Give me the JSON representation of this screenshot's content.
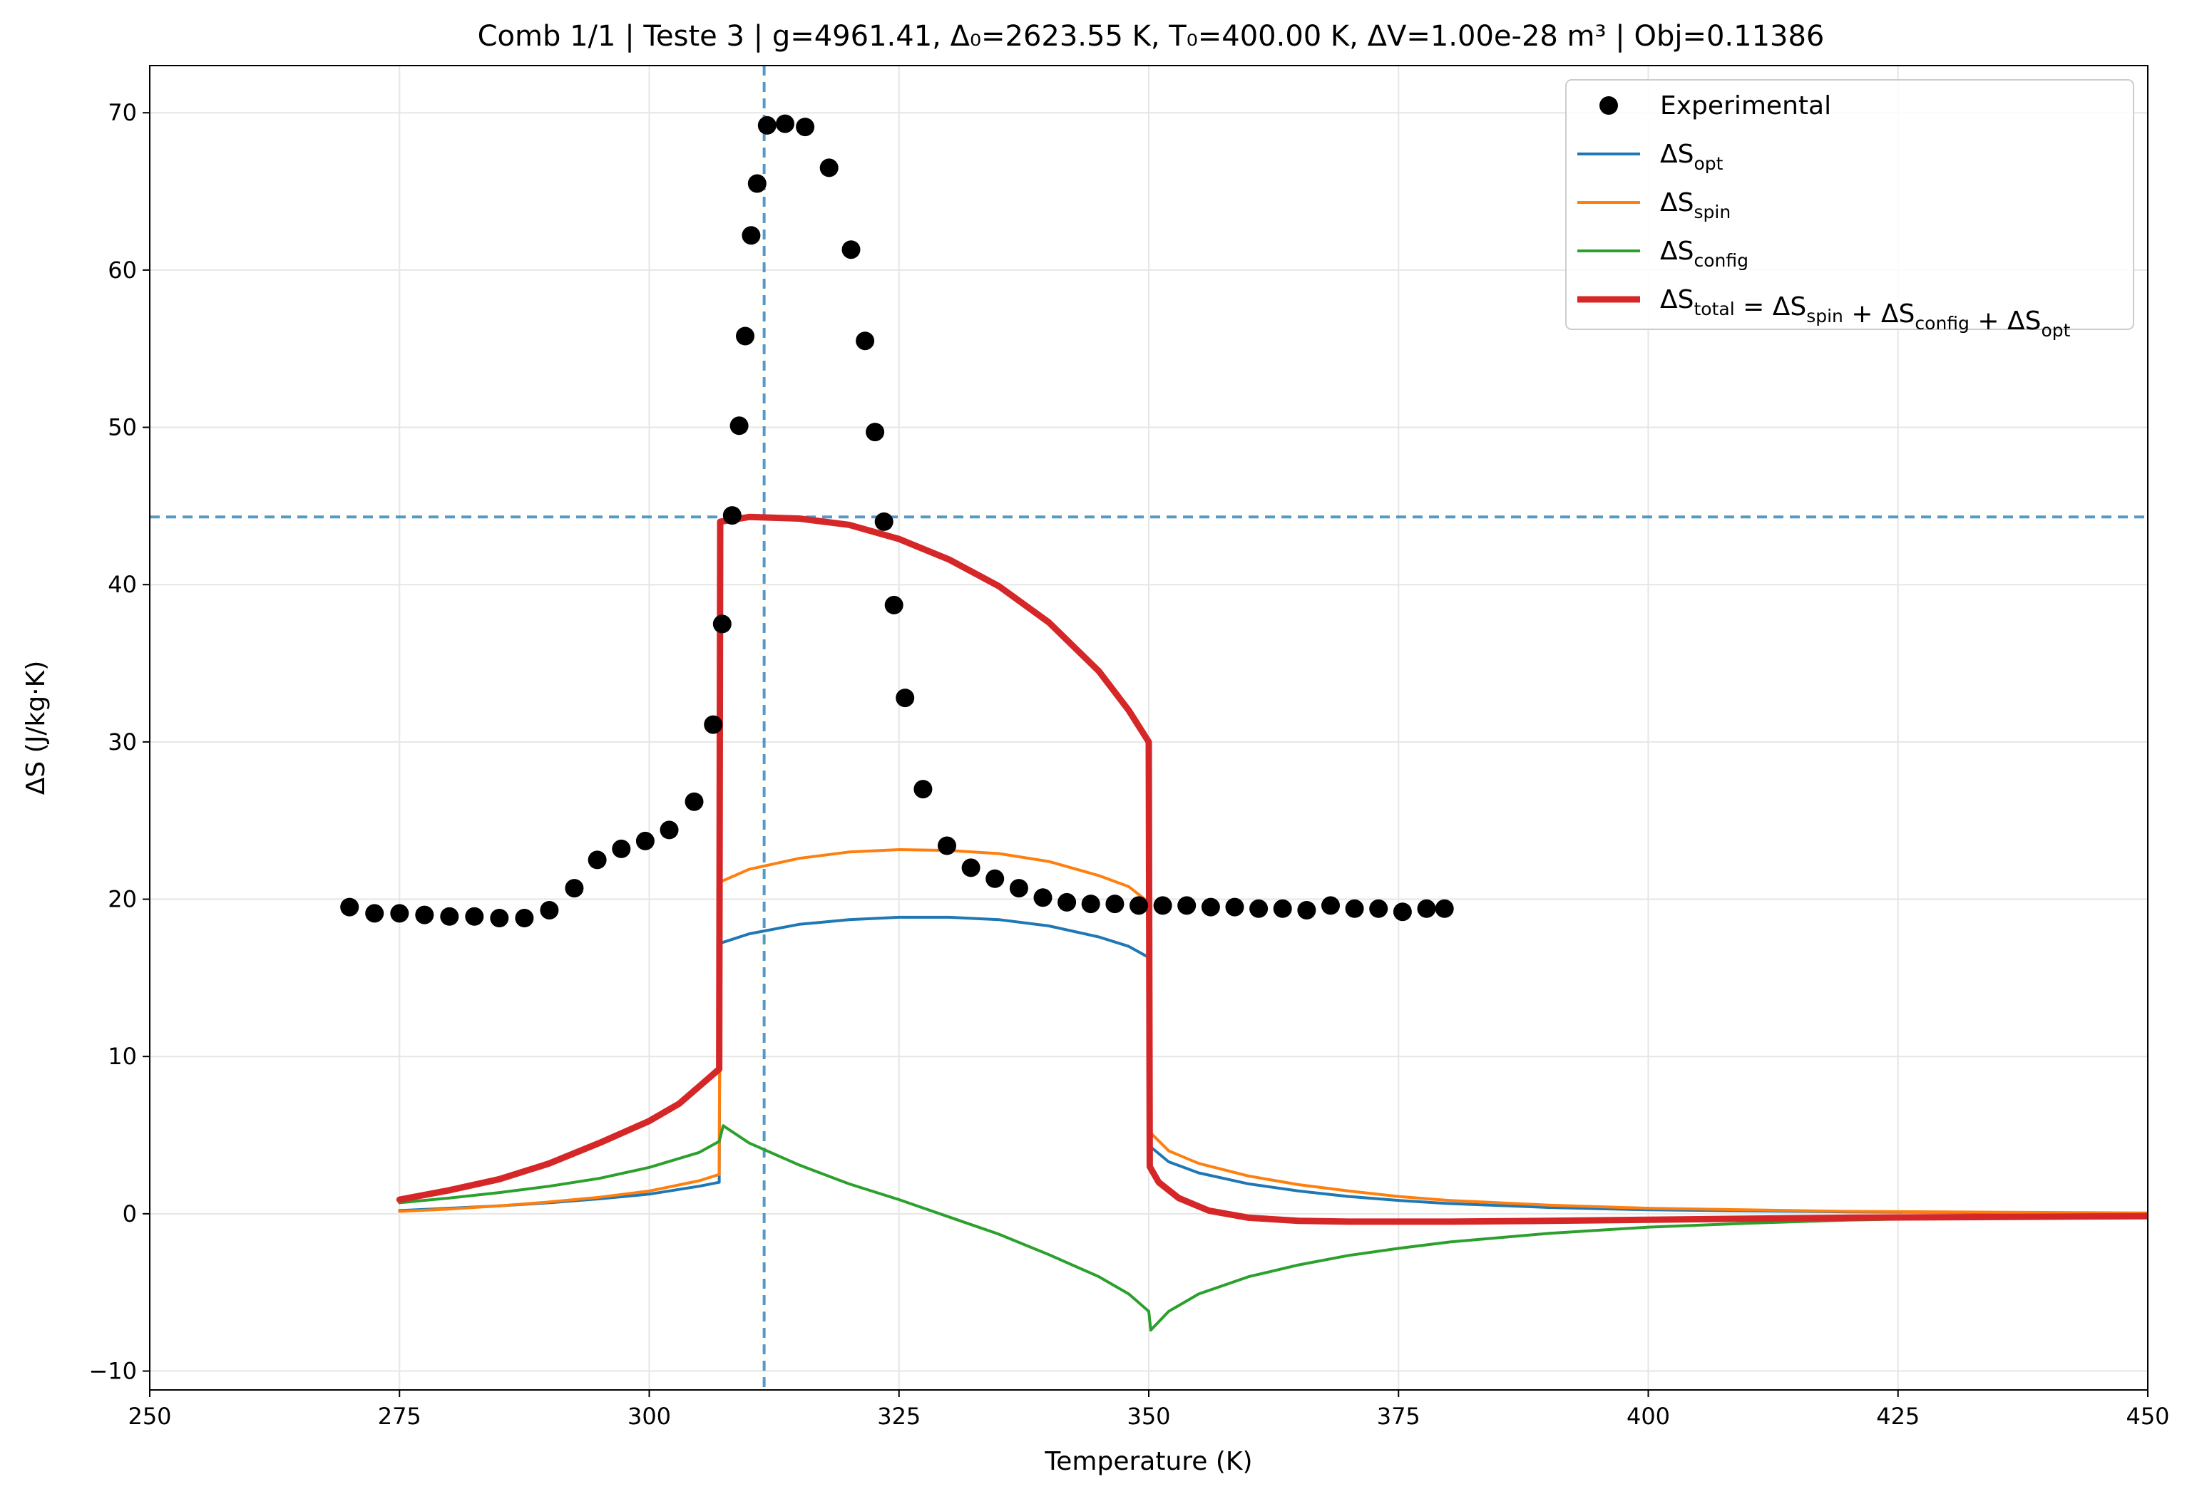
{
  "chart_data": {
    "type": "line",
    "title": "Comb 1/1 | Teste 3 | g=4961.41, Δ₀=2623.55 K, T₀=400.00 K, ΔV=1.00e-28 m³ | Obj=0.11386",
    "xlabel": "Temperature (K)",
    "ylabel": "ΔS (J/kg·K)",
    "xlim": [
      250,
      450
    ],
    "ylim": [
      -11.2,
      73
    ],
    "xticks": [
      "250",
      "275",
      "300",
      "325",
      "350",
      "375",
      "400",
      "425",
      "450"
    ],
    "yticks": [
      "−10",
      "0",
      "10",
      "20",
      "30",
      "40",
      "50",
      "60",
      "70"
    ],
    "grid": true,
    "legend_position": "top-right",
    "reference_lines": {
      "vertical_x": 311.5,
      "horizontal_y": 44.3
    },
    "legend": [
      {
        "id": "exp",
        "label": "Experimental",
        "color": "#000000",
        "kind": "marker"
      },
      {
        "id": "opt",
        "label": "ΔS",
        "sub": "opt",
        "color": "#1f77b4",
        "kind": "line"
      },
      {
        "id": "spin",
        "label": "ΔS",
        "sub": "spin",
        "color": "#ff7f0e",
        "kind": "line"
      },
      {
        "id": "config",
        "label": "ΔS",
        "sub": "config",
        "color": "#2ca02c",
        "kind": "line"
      },
      {
        "id": "total",
        "label": "ΔS",
        "sub": "total",
        "eq": " = ΔS",
        "sub2": "spin",
        "plus1": " + ΔS",
        "sub3": "config",
        "plus2": " + ΔS",
        "sub4": "opt",
        "color": "#d62728",
        "kind": "thickline"
      }
    ],
    "series": [
      {
        "name": "Experimental",
        "kind": "scatter",
        "color": "#000000",
        "points": [
          [
            270.0,
            19.5
          ],
          [
            272.5,
            19.1
          ],
          [
            275.0,
            19.1
          ],
          [
            277.5,
            19.0
          ],
          [
            280.0,
            18.9
          ],
          [
            282.5,
            18.9
          ],
          [
            285.0,
            18.8
          ],
          [
            287.5,
            18.8
          ],
          [
            290.0,
            19.3
          ],
          [
            292.5,
            20.7
          ],
          [
            294.8,
            22.5
          ],
          [
            297.2,
            23.2
          ],
          [
            299.6,
            23.7
          ],
          [
            302.0,
            24.4
          ],
          [
            304.5,
            26.2
          ],
          [
            306.4,
            31.1
          ],
          [
            307.3,
            37.5
          ],
          [
            308.3,
            44.4
          ],
          [
            309.0,
            50.1
          ],
          [
            309.6,
            55.8
          ],
          [
            310.2,
            62.2
          ],
          [
            310.8,
            65.5
          ],
          [
            311.8,
            69.2
          ],
          [
            313.6,
            69.3
          ],
          [
            315.6,
            69.1
          ],
          [
            318.0,
            66.5
          ],
          [
            320.2,
            61.3
          ],
          [
            321.6,
            55.5
          ],
          [
            322.6,
            49.7
          ],
          [
            323.5,
            44.0
          ],
          [
            324.5,
            38.7
          ],
          [
            325.6,
            32.8
          ],
          [
            327.4,
            27.0
          ],
          [
            329.8,
            23.4
          ],
          [
            332.2,
            22.0
          ],
          [
            334.6,
            21.3
          ],
          [
            337.0,
            20.7
          ],
          [
            339.4,
            20.1
          ],
          [
            341.8,
            19.8
          ],
          [
            344.2,
            19.7
          ],
          [
            346.6,
            19.7
          ],
          [
            349.0,
            19.6
          ],
          [
            351.4,
            19.6
          ],
          [
            353.8,
            19.6
          ],
          [
            356.2,
            19.5
          ],
          [
            358.6,
            19.5
          ],
          [
            361.0,
            19.4
          ],
          [
            363.4,
            19.4
          ],
          [
            365.8,
            19.3
          ],
          [
            368.2,
            19.6
          ],
          [
            370.6,
            19.4
          ],
          [
            373.0,
            19.4
          ],
          [
            375.4,
            19.2
          ],
          [
            377.8,
            19.4
          ],
          [
            379.6,
            19.4
          ]
        ]
      },
      {
        "name": "ΔS opt",
        "kind": "line",
        "color": "#1f77b4",
        "points": [
          [
            275,
            0.2
          ],
          [
            280,
            0.35
          ],
          [
            285,
            0.5
          ],
          [
            290,
            0.7
          ],
          [
            295,
            0.95
          ],
          [
            300,
            1.25
          ],
          [
            305,
            1.75
          ],
          [
            307,
            2.0
          ],
          [
            307.1,
            17.2
          ],
          [
            310,
            17.8
          ],
          [
            315,
            18.4
          ],
          [
            320,
            18.7
          ],
          [
            325,
            18.85
          ],
          [
            330,
            18.85
          ],
          [
            335,
            18.7
          ],
          [
            340,
            18.3
          ],
          [
            345,
            17.6
          ],
          [
            348,
            17.0
          ],
          [
            350,
            16.3
          ],
          [
            350.1,
            4.3
          ],
          [
            352,
            3.3
          ],
          [
            355,
            2.6
          ],
          [
            360,
            1.9
          ],
          [
            365,
            1.45
          ],
          [
            370,
            1.1
          ],
          [
            375,
            0.85
          ],
          [
            380,
            0.65
          ],
          [
            390,
            0.4
          ],
          [
            400,
            0.25
          ],
          [
            420,
            0.12
          ],
          [
            450,
            0.03
          ]
        ]
      },
      {
        "name": "ΔS spin",
        "kind": "line",
        "color": "#ff7f0e",
        "points": [
          [
            275,
            0.15
          ],
          [
            280,
            0.3
          ],
          [
            285,
            0.5
          ],
          [
            290,
            0.75
          ],
          [
            295,
            1.05
          ],
          [
            300,
            1.45
          ],
          [
            305,
            2.1
          ],
          [
            307,
            2.5
          ],
          [
            307.1,
            21.1
          ],
          [
            310,
            21.9
          ],
          [
            315,
            22.6
          ],
          [
            320,
            23.0
          ],
          [
            325,
            23.15
          ],
          [
            330,
            23.1
          ],
          [
            335,
            22.9
          ],
          [
            340,
            22.4
          ],
          [
            345,
            21.5
          ],
          [
            348,
            20.8
          ],
          [
            350,
            19.8
          ],
          [
            350.1,
            5.2
          ],
          [
            352,
            4.0
          ],
          [
            355,
            3.2
          ],
          [
            360,
            2.4
          ],
          [
            365,
            1.85
          ],
          [
            370,
            1.45
          ],
          [
            375,
            1.1
          ],
          [
            380,
            0.85
          ],
          [
            390,
            0.55
          ],
          [
            400,
            0.35
          ],
          [
            420,
            0.15
          ],
          [
            450,
            0.05
          ]
        ]
      },
      {
        "name": "ΔS config",
        "kind": "line",
        "color": "#2ca02c",
        "points": [
          [
            275,
            0.7
          ],
          [
            280,
            1.0
          ],
          [
            285,
            1.35
          ],
          [
            290,
            1.75
          ],
          [
            295,
            2.25
          ],
          [
            300,
            2.95
          ],
          [
            305,
            3.9
          ],
          [
            307,
            4.6
          ],
          [
            307.4,
            5.6
          ],
          [
            310,
            4.5
          ],
          [
            315,
            3.1
          ],
          [
            320,
            1.9
          ],
          [
            325,
            0.9
          ],
          [
            330,
            -0.2
          ],
          [
            335,
            -1.3
          ],
          [
            340,
            -2.6
          ],
          [
            345,
            -4.0
          ],
          [
            348,
            -5.1
          ],
          [
            350,
            -6.2
          ],
          [
            350.2,
            -7.4
          ],
          [
            352,
            -6.2
          ],
          [
            355,
            -5.1
          ],
          [
            360,
            -4.0
          ],
          [
            365,
            -3.25
          ],
          [
            370,
            -2.65
          ],
          [
            375,
            -2.2
          ],
          [
            380,
            -1.8
          ],
          [
            390,
            -1.25
          ],
          [
            400,
            -0.85
          ],
          [
            410,
            -0.6
          ],
          [
            420,
            -0.4
          ],
          [
            435,
            -0.2
          ],
          [
            450,
            -0.1
          ]
        ]
      },
      {
        "name": "ΔS total",
        "kind": "thickline",
        "color": "#d62728",
        "points": [
          [
            275,
            0.9
          ],
          [
            280,
            1.5
          ],
          [
            285,
            2.2
          ],
          [
            290,
            3.2
          ],
          [
            295,
            4.5
          ],
          [
            300,
            5.9
          ],
          [
            303,
            7.0
          ],
          [
            305,
            8.1
          ],
          [
            307,
            9.2
          ],
          [
            307.1,
            44.0
          ],
          [
            310,
            44.3
          ],
          [
            315,
            44.2
          ],
          [
            320,
            43.8
          ],
          [
            325,
            42.9
          ],
          [
            330,
            41.6
          ],
          [
            335,
            39.9
          ],
          [
            340,
            37.6
          ],
          [
            345,
            34.5
          ],
          [
            348,
            32.0
          ],
          [
            350,
            30.0
          ],
          [
            350.1,
            3.0
          ],
          [
            351,
            2.0
          ],
          [
            353,
            1.0
          ],
          [
            356,
            0.2
          ],
          [
            360,
            -0.25
          ],
          [
            365,
            -0.45
          ],
          [
            370,
            -0.5
          ],
          [
            380,
            -0.5
          ],
          [
            390,
            -0.45
          ],
          [
            400,
            -0.38
          ],
          [
            420,
            -0.25
          ],
          [
            450,
            -0.15
          ]
        ]
      }
    ]
  }
}
